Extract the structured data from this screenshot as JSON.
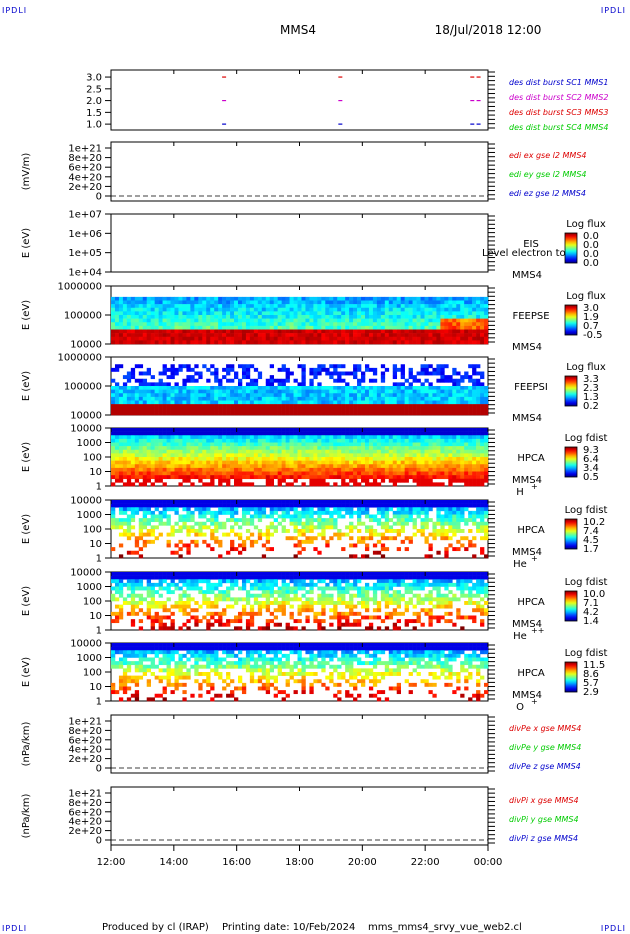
{
  "header": {
    "corner_tl": "IPDLI",
    "corner_tr": "IPDLI",
    "corner_bl": "IPDLI",
    "corner_br": "IPDLI",
    "spacecraft": "MMS4",
    "datetime": "18/Jul/2018 12:00"
  },
  "footer": {
    "produced": "Produced by cl (IRAP)",
    "printed": "Printing date: 10/Feb/2024",
    "script": "mms_mms4_srvy_vue_web2.cl"
  },
  "colors": {
    "red": "#dd0000",
    "magenta": "#cc00cc",
    "green": "#00cc00",
    "blue": "#0000cc"
  },
  "chart_data": {
    "type": "heatmap",
    "x_ticks": [
      "12:00",
      "14:00",
      "16:00",
      "18:00",
      "20:00",
      "22:00",
      "00:00"
    ],
    "x_range_hours": [
      12,
      24
    ],
    "panels": [
      {
        "id": "burst",
        "type": "scatter",
        "ylabel": "",
        "ticks": [
          "3.0",
          "2.5",
          "2.0",
          "1.5",
          "1.0"
        ],
        "tick_values": [
          3.0,
          2.5,
          2.0,
          1.5,
          1.0
        ],
        "ylim": [
          0.75,
          3.3
        ],
        "legend": [
          {
            "label": "des dist burst SC1 MMS1",
            "color": "#0000cc"
          },
          {
            "label": "des dist burst SC2 MMS2",
            "color": "#cc00cc"
          },
          {
            "label": "des dist burst SC3 MMS3",
            "color": "#dd0000"
          },
          {
            "label": "des dist burst SC4 MMS4",
            "color": "#00cc00"
          }
        ],
        "marks": [
          {
            "y": 3.0,
            "color": "#dd0000",
            "t": [
              15.6,
              19.3,
              23.5,
              23.7
            ]
          },
          {
            "y": 2.0,
            "color": "#cc00cc",
            "t": [
              15.6,
              19.3,
              23.5,
              23.7
            ]
          },
          {
            "y": 1.0,
            "color": "#0000cc",
            "t": [
              15.6,
              19.3,
              23.5,
              23.7
            ]
          }
        ]
      },
      {
        "id": "edi",
        "type": "line",
        "ylabel": "(mV/m)",
        "ticks": [
          "1e+21",
          "8e+20",
          "6e+20",
          "4e+20",
          "2e+20",
          "0"
        ],
        "legend": [
          {
            "label": "edi ex gse l2 MMS4",
            "color": "#dd0000"
          },
          {
            "label": "edi ey gse l2 MMS4",
            "color": "#00cc00"
          },
          {
            "label": "edi ez gse l2 MMS4",
            "color": "#0000cc"
          }
        ]
      },
      {
        "id": "eis",
        "type": "heatmap",
        "ylabel": "E (eV)",
        "ticks": [
          "1e+07",
          "1e+06",
          "1e+05",
          "1e+04"
        ],
        "instrument": "EIS",
        "overlay_text": "Level electron to",
        "sc": "MMS4",
        "species": "",
        "cbar_title": "Log flux",
        "cbar_labels": [
          "0.0",
          "0.0",
          "0.0",
          "0.0"
        ]
      },
      {
        "id": "feepse",
        "type": "heatmap",
        "ylabel": "E (eV)",
        "ticks": [
          "1000000",
          "100000",
          "10000"
        ],
        "instrument": "FEEPSE",
        "sc": "MMS4",
        "species": "",
        "cbar_title": "Log flux",
        "cbar_labels": [
          "3.0",
          "1.9",
          "0.7",
          "-0.5"
        ]
      },
      {
        "id": "feepsi",
        "type": "heatmap",
        "ylabel": "E (eV)",
        "ticks": [
          "1000000",
          "100000",
          "10000"
        ],
        "instrument": "FEEPSI",
        "sc": "MMS4",
        "species": "",
        "cbar_title": "Log flux",
        "cbar_labels": [
          "3.3",
          "2.3",
          "1.3",
          "0.2"
        ]
      },
      {
        "id": "hpca_h",
        "type": "heatmap",
        "ylabel": "E (eV)",
        "ticks": [
          "10000",
          "1000",
          "100",
          "10",
          "1"
        ],
        "instrument": "HPCA",
        "sc": "MMS4",
        "species": "H",
        "charge": "+",
        "cbar_title": "Log fdist",
        "cbar_labels": [
          "9.3",
          "6.4",
          "3.4",
          "0.5"
        ]
      },
      {
        "id": "hpca_he",
        "type": "heatmap",
        "ylabel": "E (eV)",
        "ticks": [
          "10000",
          "1000",
          "100",
          "10",
          "1"
        ],
        "instrument": "HPCA",
        "sc": "MMS4",
        "species": "He",
        "charge": "+",
        "cbar_title": "Log fdist",
        "cbar_labels": [
          "10.2",
          "7.4",
          "4.5",
          "1.7"
        ]
      },
      {
        "id": "hpca_hepp",
        "type": "heatmap",
        "ylabel": "E (eV)",
        "ticks": [
          "10000",
          "1000",
          "100",
          "10",
          "1"
        ],
        "instrument": "HPCA",
        "sc": "MMS4",
        "species": "He",
        "charge": "++",
        "cbar_title": "Log fdist",
        "cbar_labels": [
          "10.0",
          "7.1",
          "4.2",
          "1.4"
        ]
      },
      {
        "id": "hpca_o",
        "type": "heatmap",
        "ylabel": "E (eV)",
        "ticks": [
          "10000",
          "1000",
          "100",
          "10",
          "1"
        ],
        "instrument": "HPCA",
        "sc": "MMS4",
        "species": "O",
        "charge": "+",
        "cbar_title": "Log fdist",
        "cbar_labels": [
          "11.5",
          "8.6",
          "5.7",
          "2.9"
        ]
      },
      {
        "id": "divpe",
        "type": "line",
        "ylabel": "(nPa/km)",
        "ticks": [
          "1e+21",
          "8e+20",
          "6e+20",
          "4e+20",
          "2e+20",
          "0"
        ],
        "legend": [
          {
            "label": "divPe x gse MMS4",
            "color": "#dd0000"
          },
          {
            "label": "divPe y gse MMS4",
            "color": "#00cc00"
          },
          {
            "label": "divPe z gse MMS4",
            "color": "#0000cc"
          }
        ]
      },
      {
        "id": "divpi",
        "type": "line",
        "ylabel": "(nPa/km)",
        "ticks": [
          "1e+21",
          "8e+20",
          "6e+20",
          "4e+20",
          "2e+20",
          "0"
        ],
        "legend": [
          {
            "label": "divPi x gse MMS4",
            "color": "#dd0000"
          },
          {
            "label": "divPi y gse MMS4",
            "color": "#00cc00"
          },
          {
            "label": "divPi z gse MMS4",
            "color": "#0000cc"
          }
        ]
      }
    ]
  }
}
